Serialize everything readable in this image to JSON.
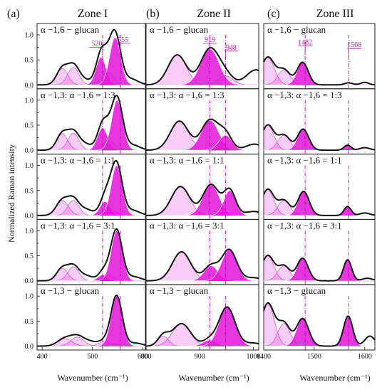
{
  "panel_letters": [
    "(a)",
    "(b)",
    "(c)"
  ],
  "zone_titles": [
    "Zone I",
    "Zone II",
    "Zone III"
  ],
  "x_axis_label": "Wavenumber (cm⁻¹)",
  "y_axis_label": "Normalized Raman intensity",
  "row_labels": [
    "α −1,6 − glucan",
    "α −1,3: α −1,6 = 1:3",
    "α −1,3: α −1,6 = 1:1",
    "α −1,3: α −1,6 = 3:1",
    "α −1,3 − glucan"
  ],
  "annotations": [
    {
      "zone": 0,
      "text": "520",
      "x": 520
    },
    {
      "zone": 0,
      "text": "555",
      "x": 555
    },
    {
      "zone": 1,
      "text": "919",
      "x": 919
    },
    {
      "zone": 1,
      "text": "948",
      "x": 948
    },
    {
      "zone": 2,
      "text": "1482",
      "x": 1482
    },
    {
      "zone": 2,
      "text": "1568",
      "x": 1568
    }
  ],
  "chart_data": {
    "type": "line",
    "ylabel": "Normalized Raman intensity",
    "xlabel": "Wavenumber (cm⁻¹)",
    "ylim": [
      -0.05,
      1.2
    ],
    "yticks": [
      0.0,
      0.5,
      1.0
    ],
    "yticks_minor": [
      0.0,
      0.25,
      0.5,
      0.75,
      1.0
    ],
    "zones": [
      {
        "name": "Zone I",
        "xlim": [
          390,
          605
        ],
        "xticks": [
          400,
          500,
          600
        ],
        "markers": [
          520,
          555
        ],
        "rows": [
          {
            "label": "α −1,6 − glucan",
            "fill_peaks": [
              [
                517,
                0.55,
                10
              ],
              [
                545,
                0.95,
                11
              ]
            ],
            "light_peaks": [
              [
                440,
                0.33,
                11
              ],
              [
                462,
                0.35,
                11
              ],
              [
                530,
                0.25,
                12
              ]
            ],
            "baseline_peaks": [
              [
                482,
                0.1,
                15
              ],
              [
                575,
                0.12,
                15
              ]
            ]
          },
          {
            "label": "α −1,3: α −1,6 = 1:3",
            "fill_peaks": [
              [
                520,
                0.45,
                10
              ],
              [
                549,
                1.0,
                11
              ]
            ],
            "light_peaks": [
              [
                440,
                0.33,
                11
              ],
              [
                462,
                0.34,
                11
              ],
              [
                532,
                0.2,
                12
              ]
            ],
            "baseline_peaks": [
              [
                485,
                0.12,
                14
              ],
              [
                580,
                0.1,
                14
              ]
            ]
          },
          {
            "label": "α −1,3: α −1,6 = 1:1",
            "fill_peaks": [
              [
                525,
                0.28,
                10
              ],
              [
                548,
                1.0,
                11
              ]
            ],
            "light_peaks": [
              [
                440,
                0.3,
                12
              ],
              [
                462,
                0.3,
                11
              ],
              [
                532,
                0.15,
                12
              ]
            ],
            "baseline_peaks": [
              [
                487,
                0.12,
                14
              ],
              [
                580,
                0.1,
                14
              ]
            ]
          },
          {
            "label": "α −1,3: α −1,6 = 3:1",
            "fill_peaks": [
              [
                520,
                0.12,
                9
              ],
              [
                548,
                1.0,
                11
              ]
            ],
            "light_peaks": [
              [
                440,
                0.25,
                11
              ],
              [
                462,
                0.28,
                11
              ],
              [
                530,
                0.12,
                11
              ]
            ],
            "baseline_peaks": [
              [
                487,
                0.1,
                14
              ],
              [
                582,
                0.08,
                14
              ]
            ]
          },
          {
            "label": "α −1,3 − glucan",
            "fill_peaks": [
              [
                548,
                1.0,
                11
              ]
            ],
            "light_peaks": [
              [
                445,
                0.15,
                14
              ],
              [
                470,
                0.18,
                13
              ],
              [
                525,
                0.1,
                12
              ]
            ],
            "baseline_peaks": [
              [
                495,
                0.08,
                14
              ],
              [
                585,
                0.06,
                14
              ]
            ]
          }
        ]
      },
      {
        "name": "Zone II",
        "xlim": [
          800,
          1010
        ],
        "xticks": [
          800,
          900,
          1000
        ],
        "markers": [
          919,
          948
        ],
        "rows": [
          {
            "label": "α −1,6 − glucan",
            "fill_peaks": [
              [
                919,
                0.72,
                17
              ]
            ],
            "light_peaks": [
              [
                858,
                0.6,
                17
              ],
              [
                948,
                0.18,
                14
              ]
            ],
            "baseline_peaks": [
              [
                1005,
                0.3,
                18
              ]
            ]
          },
          {
            "label": "α −1,3: α −1,6 = 1:3",
            "fill_peaks": [
              [
                919,
                0.6,
                16
              ],
              [
                948,
                0.3,
                12
              ]
            ],
            "light_peaks": [
              [
                862,
                0.58,
                17
              ]
            ],
            "baseline_peaks": [
              [
                1002,
                0.12,
                16
              ]
            ]
          },
          {
            "label": "α −1,3: α −1,6 = 1:1",
            "fill_peaks": [
              [
                921,
                0.62,
                15
              ],
              [
                956,
                0.5,
                11
              ]
            ],
            "light_peaks": [
              [
                864,
                0.58,
                17
              ]
            ],
            "baseline_peaks": [
              [
                1000,
                0.08,
                15
              ]
            ]
          },
          {
            "label": "α −1,3: α −1,6 = 3:1",
            "fill_peaks": [
              [
                921,
                0.3,
                13
              ],
              [
                955,
                0.62,
                14
              ]
            ],
            "light_peaks": [
              [
                866,
                0.58,
                17
              ]
            ],
            "baseline_peaks": [
              [
                1000,
                0.06,
                15
              ]
            ]
          },
          {
            "label": "α −1,3 − glucan",
            "fill_peaks": [
              [
                918,
                0.12,
                12
              ],
              [
                951,
                0.78,
                15
              ]
            ],
            "light_peaks": [
              [
                866,
                0.45,
                17
              ],
              [
                832,
                0.2,
                10
              ]
            ],
            "baseline_peaks": [
              [
                1000,
                0.06,
                15
              ]
            ]
          }
        ]
      },
      {
        "name": "Zone III",
        "xlim": [
          1400,
          1620
        ],
        "xticks": [
          1400,
          1500,
          1600
        ],
        "markers": [
          1482,
          1568
        ],
        "rows": [
          {
            "label": "α −1,6 − glucan",
            "fill_peaks": [
              [
                1477,
                0.45,
                11
              ]
            ],
            "light_peaks": [
              [
                1408,
                0.55,
                13
              ],
              [
                1440,
                0.3,
                12
              ]
            ],
            "baseline_peaks": [
              [
                1568,
                0.04,
                8
              ],
              [
                1600,
                0.05,
                8
              ]
            ]
          },
          {
            "label": "α −1,3: α −1,6 = 1:3",
            "fill_peaks": [
              [
                1478,
                0.42,
                11
              ],
              [
                1566,
                0.1,
                7
              ]
            ],
            "light_peaks": [
              [
                1408,
                0.5,
                12
              ],
              [
                1440,
                0.3,
                12
              ]
            ],
            "baseline_peaks": [
              [
                1600,
                0.05,
                10
              ]
            ]
          },
          {
            "label": "α −1,3: α −1,6 = 1:1",
            "fill_peaks": [
              [
                1479,
                0.48,
                11
              ],
              [
                1566,
                0.18,
                7
              ]
            ],
            "light_peaks": [
              [
                1408,
                0.52,
                12
              ],
              [
                1440,
                0.3,
                12
              ]
            ],
            "baseline_peaks": [
              [
                1600,
                0.05,
                10
              ]
            ]
          },
          {
            "label": "α −1,3: α −1,6 = 3:1",
            "fill_peaks": [
              [
                1477,
                0.45,
                11
              ],
              [
                1566,
                0.42,
                8
              ]
            ],
            "light_peaks": [
              [
                1408,
                0.5,
                12
              ],
              [
                1440,
                0.3,
                12
              ]
            ],
            "baseline_peaks": [
              [
                1605,
                0.05,
                10
              ]
            ]
          },
          {
            "label": "α −1,3 − glucan",
            "fill_peaks": [
              [
                1477,
                0.55,
                12
              ],
              [
                1567,
                0.6,
                9
              ]
            ],
            "light_peaks": [
              [
                1408,
                0.85,
                13
              ],
              [
                1440,
                0.45,
                12
              ]
            ],
            "baseline_peaks": [
              [
                1610,
                0.2,
                10
              ]
            ]
          }
        ]
      }
    ]
  }
}
